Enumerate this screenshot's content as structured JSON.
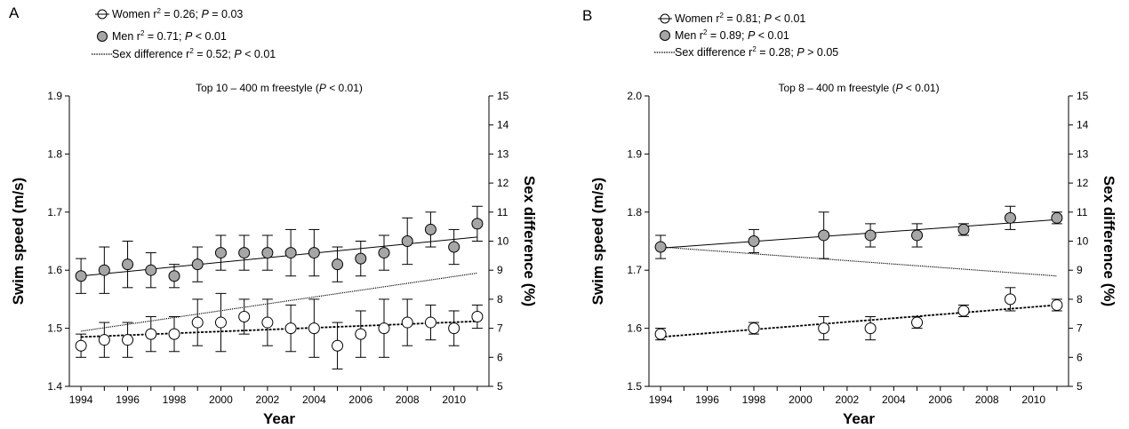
{
  "chart_data": [
    {
      "type": "scatter",
      "panel": "A",
      "title_main": "Top 10 – 400 m freestyle (",
      "title_p": "P",
      "title_tail": " < 0.01)",
      "xlabel": "Year",
      "ylabel": "Swim speed (m/s)",
      "y2label": "Sex difference (%)",
      "xlim": [
        1993.5,
        2011.5
      ],
      "ylim": [
        1.4,
        1.9
      ],
      "y2lim": [
        5,
        15
      ],
      "x_ticks": [
        "1994",
        "1996",
        "1998",
        "2000",
        "2002",
        "2004",
        "2006",
        "2008",
        "2010"
      ],
      "y_ticks": [
        "1.4",
        "1.5",
        "1.6",
        "1.7",
        "1.8",
        "1.9"
      ],
      "y2_ticks": [
        "5",
        "6",
        "7",
        "8",
        "9",
        "10",
        "11",
        "12",
        "13",
        "14",
        "15"
      ],
      "legend": [
        {
          "pre": "Women r",
          "sup": "2",
          "stat": " = 0.26; ",
          "p": "P",
          "post": " = 0.03",
          "marker": "open-circle"
        },
        {
          "pre": "Men r",
          "sup": "2",
          "stat": " = 0.71; ",
          "p": "P",
          "post": " < 0.01",
          "marker": "filled-circle"
        },
        {
          "pre": "Sex difference r",
          "sup": "2",
          "stat": " = 0.52; ",
          "p": "P",
          "post": " < 0.01",
          "marker": "dotted-line"
        }
      ],
      "series": [
        {
          "name": "Women",
          "x": [
            1994,
            1995,
            1996,
            1997,
            1998,
            1999,
            2000,
            2001,
            2002,
            2003,
            2004,
            2005,
            2006,
            2007,
            2008,
            2009,
            2010,
            2011
          ],
          "y": [
            1.47,
            1.48,
            1.48,
            1.49,
            1.49,
            1.51,
            1.51,
            1.52,
            1.51,
            1.5,
            1.5,
            1.47,
            1.49,
            1.5,
            1.51,
            1.51,
            1.5,
            1.52
          ],
          "err": [
            0.02,
            0.03,
            0.03,
            0.03,
            0.03,
            0.04,
            0.05,
            0.03,
            0.04,
            0.04,
            0.05,
            0.04,
            0.04,
            0.05,
            0.04,
            0.03,
            0.03,
            0.02
          ],
          "trend": [
            [
              1994,
              1.485
            ],
            [
              2011,
              1.512
            ]
          ]
        },
        {
          "name": "Men",
          "x": [
            1994,
            1995,
            1996,
            1997,
            1998,
            1999,
            2000,
            2001,
            2002,
            2003,
            2004,
            2005,
            2006,
            2007,
            2008,
            2009,
            2010,
            2011
          ],
          "y": [
            1.59,
            1.6,
            1.61,
            1.6,
            1.59,
            1.61,
            1.63,
            1.63,
            1.63,
            1.63,
            1.63,
            1.61,
            1.62,
            1.63,
            1.65,
            1.67,
            1.64,
            1.68
          ],
          "err": [
            0.03,
            0.04,
            0.04,
            0.03,
            0.02,
            0.03,
            0.03,
            0.03,
            0.03,
            0.04,
            0.04,
            0.03,
            0.03,
            0.03,
            0.04,
            0.03,
            0.03,
            0.03
          ],
          "trend": [
            [
              1994,
              1.59
            ],
            [
              2011,
              1.657
            ]
          ]
        },
        {
          "name": "Sex difference",
          "axis": "y2",
          "trend": [
            [
              1994,
              6.9
            ],
            [
              2011,
              8.9
            ]
          ]
        }
      ]
    },
    {
      "type": "scatter",
      "panel": "B",
      "title_main": "Top 8 – 400 m freestyle (",
      "title_p": "P",
      "title_tail": " < 0.01)",
      "xlabel": "Year",
      "ylabel": "Swim speed (m/s)",
      "y2label": "Sex difference (%)",
      "xlim": [
        1993.5,
        2011.5
      ],
      "ylim": [
        1.5,
        2.0
      ],
      "y2lim": [
        5,
        15
      ],
      "x_ticks": [
        "1994",
        "1996",
        "1998",
        "2000",
        "2002",
        "2004",
        "2006",
        "2008",
        "2010"
      ],
      "y_ticks": [
        "1.5",
        "1.6",
        "1.7",
        "1.8",
        "1.9",
        "2.0"
      ],
      "y2_ticks": [
        "5",
        "6",
        "7",
        "8",
        "9",
        "10",
        "11",
        "12",
        "13",
        "14",
        "15"
      ],
      "legend": [
        {
          "pre": "Women r",
          "sup": "2",
          "stat": " = 0.81; ",
          "p": "P",
          "post": " < 0.01",
          "marker": "open-circle"
        },
        {
          "pre": "Men r",
          "sup": "2",
          "stat": " = 0.89; ",
          "p": "P",
          "post": " < 0.01",
          "marker": "filled-circle"
        },
        {
          "pre": "Sex difference r",
          "sup": "2",
          "stat": " = 0.28; ",
          "p": "P",
          "post": " > 0.05",
          "marker": "dotted-line"
        }
      ],
      "series": [
        {
          "name": "Women",
          "x": [
            1994,
            1998,
            2001,
            2003,
            2005,
            2007,
            2009,
            2011
          ],
          "y": [
            1.59,
            1.6,
            1.6,
            1.6,
            1.61,
            1.63,
            1.65,
            1.64
          ],
          "err": [
            0.01,
            0.01,
            0.02,
            0.02,
            0.01,
            0.01,
            0.02,
            0.01
          ],
          "trend": [
            [
              1994,
              1.585
            ],
            [
              2011,
              1.64
            ]
          ]
        },
        {
          "name": "Men",
          "x": [
            1994,
            1998,
            2001,
            2003,
            2005,
            2007,
            2009,
            2011
          ],
          "y": [
            1.74,
            1.75,
            1.76,
            1.76,
            1.76,
            1.77,
            1.79,
            1.79
          ],
          "err": [
            0.02,
            0.02,
            0.04,
            0.02,
            0.02,
            0.01,
            0.02,
            0.01
          ],
          "trend": [
            [
              1994,
              1.738
            ],
            [
              2011,
              1.787
            ]
          ]
        },
        {
          "name": "Sex difference",
          "axis": "y2",
          "trend": [
            [
              1994,
              9.8
            ],
            [
              2011,
              8.8
            ]
          ]
        }
      ]
    }
  ],
  "colors": {
    "men_fill": "#a6a6a6",
    "women_fill": "#ffffff",
    "stroke": "#000000"
  }
}
